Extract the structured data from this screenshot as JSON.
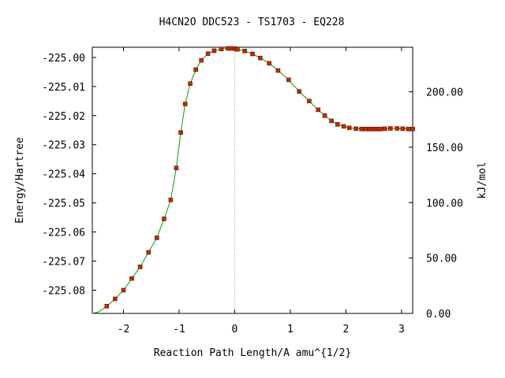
{
  "chart_data": {
    "type": "scatter",
    "title": "H4CN2O   DDC523 - TS1703 - EQ228",
    "xlabel": "Reaction Path Length/A amu^{1/2}",
    "ylabel": "Energy/Hartree",
    "y2label": "kJ/mol",
    "xlim": [
      -2.56,
      3.2
    ],
    "ylim": [
      -225.088,
      -224.9965
    ],
    "y2lim": [
      0,
      240.2
    ],
    "x_ticks": [
      -2,
      -1,
      0,
      1,
      2,
      3
    ],
    "x_tick_labels": [
      "-2",
      "-1",
      "0",
      "1",
      "2",
      "3"
    ],
    "y_ticks": [
      -225.0,
      -225.01,
      -225.02,
      -225.03,
      -225.04,
      -225.05,
      -225.06,
      -225.07,
      -225.08
    ],
    "y_tick_labels": [
      "-225.00",
      "-225.01",
      "-225.02",
      "-225.03",
      "-225.04",
      "-225.05",
      "-225.06",
      "-225.07",
      "-225.08"
    ],
    "y2_ticks": [
      0,
      50,
      100,
      150,
      200
    ],
    "y2_tick_labels": [
      "0.00",
      "50.00",
      "100.00",
      "150.00",
      "200.00"
    ],
    "ts_marker_x": 0,
    "colors": {
      "curve": "#00a000",
      "points": "#cc2200",
      "point_edge": "#4a2a00",
      "ts_line": "#999999",
      "axis": "#000000"
    },
    "series": [
      {
        "x": [
          -2.56,
          -2.45,
          -2.3,
          -2.15,
          -2.0,
          -1.85,
          -1.7,
          -1.55,
          -1.4,
          -1.27,
          -1.15,
          -1.05,
          -0.97,
          -0.89,
          -0.8,
          -0.7,
          -0.6,
          -0.48,
          -0.37,
          -0.24,
          -0.12,
          0.0,
          0.05,
          0.18,
          0.32,
          0.46,
          0.62,
          0.78,
          0.97,
          1.16,
          1.34,
          1.5,
          1.62,
          1.74,
          1.85,
          1.96,
          2.06,
          2.18,
          2.28,
          2.36,
          2.42,
          2.46,
          2.5,
          2.54,
          2.58,
          2.62,
          2.7,
          2.8,
          2.92,
          3.02,
          3.12,
          3.2
        ],
        "y": [
          -225.088,
          -225.0875,
          -225.0855,
          -225.083,
          -225.08,
          -225.076,
          -225.072,
          -225.067,
          -225.062,
          -225.0555,
          -225.049,
          -225.038,
          -225.0258,
          -225.016,
          -225.009,
          -225.0042,
          -225.001,
          -224.9987,
          -224.9977,
          -224.9971,
          -224.9969,
          -224.99695,
          -224.9972,
          -224.9978,
          -224.9988,
          -225.0002,
          -225.002,
          -225.0045,
          -225.0077,
          -225.0117,
          -225.015,
          -225.018,
          -225.02,
          -225.0218,
          -225.023,
          -225.0237,
          -225.0242,
          -225.0245,
          -225.0246,
          -225.0246,
          -225.0246,
          -225.0246,
          -225.0246,
          -225.0246,
          -225.0246,
          -225.0246,
          -225.0245,
          -225.0244,
          -225.0244,
          -225.0245,
          -225.0246,
          -225.0246
        ],
        "marker_x": [
          -2.3,
          -2.15,
          -2.0,
          -1.85,
          -1.7,
          -1.55,
          -1.4,
          -1.27,
          -1.15,
          -1.05,
          -0.97,
          -0.89,
          -0.8,
          -0.7,
          -0.6,
          -0.48,
          -0.37,
          -0.24,
          -0.12,
          -0.06,
          0.0,
          0.05,
          0.18,
          0.32,
          0.46,
          0.62,
          0.78,
          0.97,
          1.16,
          1.34,
          1.5,
          1.62,
          1.74,
          1.85,
          1.96,
          2.06,
          2.18,
          2.28,
          2.36,
          2.42,
          2.46,
          2.5,
          2.54,
          2.58,
          2.62,
          2.7,
          2.8,
          2.92,
          3.02,
          3.12,
          3.2
        ],
        "marker_y": [
          -225.0855,
          -225.083,
          -225.08,
          -225.076,
          -225.072,
          -225.067,
          -225.062,
          -225.0555,
          -225.049,
          -225.038,
          -225.0258,
          -225.016,
          -225.009,
          -225.0042,
          -225.001,
          -224.9987,
          -224.9977,
          -224.9971,
          -224.9969,
          -224.9969,
          -224.99695,
          -224.9972,
          -224.9978,
          -224.9988,
          -225.0002,
          -225.002,
          -225.0045,
          -225.0077,
          -225.0117,
          -225.015,
          -225.018,
          -225.02,
          -225.0218,
          -225.023,
          -225.0237,
          -225.0242,
          -225.0245,
          -225.0246,
          -225.0246,
          -225.0246,
          -225.0246,
          -225.0246,
          -225.0246,
          -225.0246,
          -225.0246,
          -225.0245,
          -225.0244,
          -225.0244,
          -225.0245,
          -225.0246,
          -225.0246
        ]
      }
    ]
  }
}
